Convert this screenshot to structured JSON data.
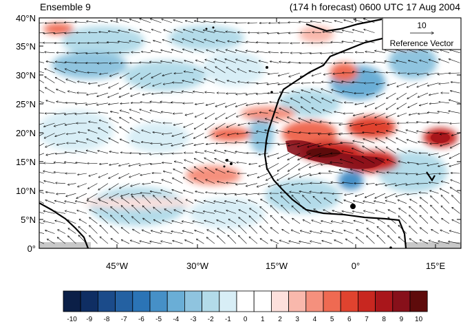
{
  "header": {
    "left_title": "Ensemble 9",
    "right_title": "(174 h forecast) 0600 UTC 17 Aug 2004"
  },
  "axes": {
    "y_labels": [
      "40°N",
      "35°N",
      "30°N",
      "25°N",
      "20°N",
      "15°N",
      "10°N",
      "5°N",
      "0°"
    ],
    "x_labels": [
      "45°W",
      "30°W",
      "15°W",
      "0°",
      "15°E"
    ]
  },
  "reference_vector": {
    "value": "10",
    "label": "Reference Vector"
  },
  "colorbar": {
    "labels": [
      "-10",
      "-9",
      "-8",
      "-7",
      "-6",
      "-5",
      "-4",
      "-3",
      "-2",
      "-1",
      "0",
      "1",
      "2",
      "3",
      "4",
      "5",
      "6",
      "7",
      "8",
      "9",
      "10"
    ],
    "colors": [
      "#0b1f47",
      "#0f2e63",
      "#1b4b8a",
      "#2461a2",
      "#2b74b6",
      "#4690c7",
      "#6aaed6",
      "#8fc4df",
      "#b3dbe9",
      "#d8eef6",
      "#ffffff",
      "#ffffff",
      "#fde0dc",
      "#f9b8ac",
      "#f5907d",
      "#ef6a52",
      "#e0432f",
      "#c82720",
      "#a9161b",
      "#87101a",
      "#5e0b0b"
    ]
  }
}
